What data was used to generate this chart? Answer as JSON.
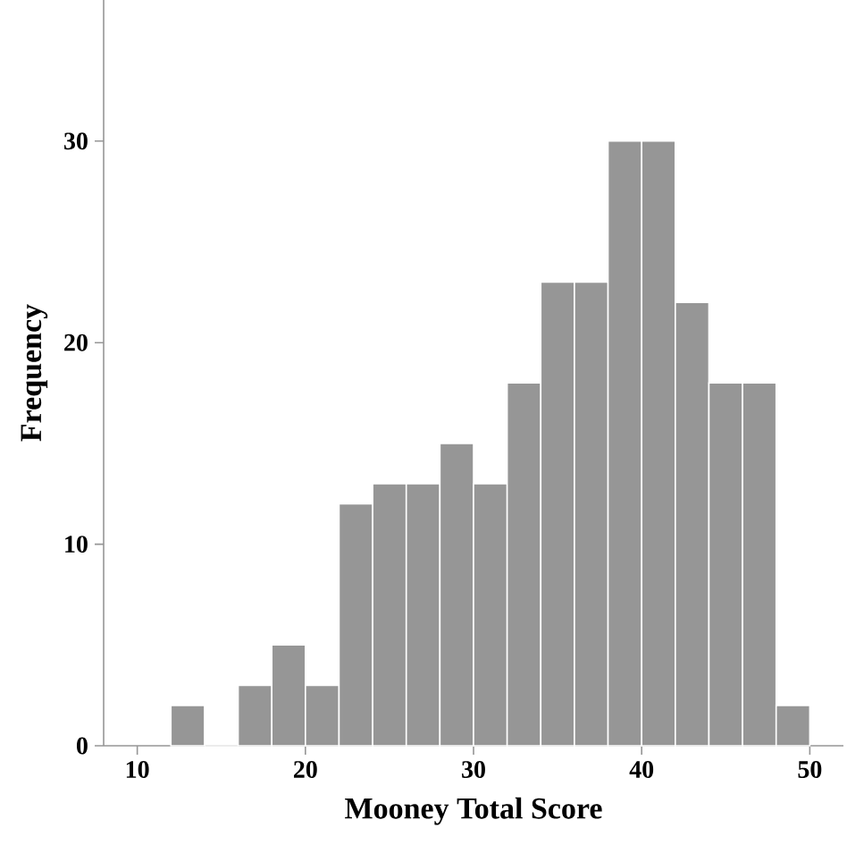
{
  "chart_data": {
    "type": "histogram",
    "xlabel": "Mooney Total Score",
    "ylabel": "Frequency",
    "bins": [
      12,
      14,
      16,
      18,
      20,
      22,
      24,
      26,
      28,
      30,
      32,
      34,
      36,
      38,
      40,
      42,
      44,
      46,
      48,
      50
    ],
    "values": [
      2,
      0,
      3,
      5,
      3,
      12,
      13,
      13,
      15,
      13,
      18,
      23,
      23,
      30,
      30,
      22,
      18,
      18,
      2
    ],
    "color": "#969696",
    "xlim": [
      8,
      52
    ],
    "ylim": [
      0,
      37
    ],
    "xticks": [
      10,
      20,
      30,
      40,
      50
    ],
    "yticks": [
      0,
      10,
      20,
      30
    ],
    "grid": false
  }
}
